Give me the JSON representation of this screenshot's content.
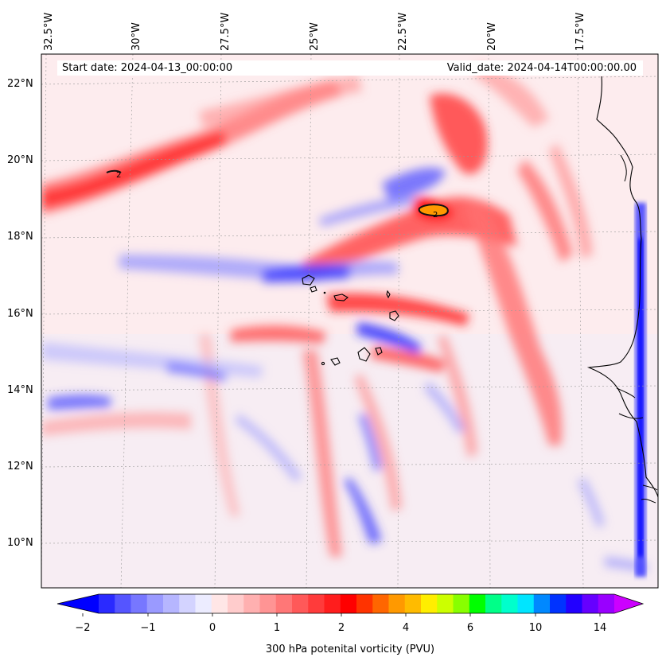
{
  "map": {
    "start_date": "Start date: 2024-04-13_00:00:00",
    "valid_date": "Valid_date: 2024-04-14T00:00:00.00",
    "longitude_labels": [
      "32.5°W",
      "30°W",
      "27.5°W",
      "25°W",
      "22.5°W",
      "20°W",
      "17.5°W"
    ],
    "latitude_labels": [
      "22°N",
      "20°N",
      "18°N",
      "16°N",
      "14°N",
      "12°N",
      "10°N"
    ],
    "field": "300 hPa potential vorticity",
    "contour_labels": [
      "2",
      "2"
    ]
  },
  "colorbar": {
    "title": "300 hPa potenital vorticity (PVU)",
    "ticks": [
      "−2",
      "−1",
      "0",
      "1",
      "2",
      "4",
      "6",
      "10",
      "14"
    ],
    "colors": [
      "#0000ff",
      "#2a2aff",
      "#5555ff",
      "#7777ff",
      "#9a9aff",
      "#b6b6ff",
      "#d3d3ff",
      "#ececff",
      "#ffe6e6",
      "#ffcccc",
      "#ffb0b0",
      "#ff9494",
      "#ff7777",
      "#ff5959",
      "#ff3b3b",
      "#ff1d1d",
      "#ff0000",
      "#ff3300",
      "#ff6600",
      "#ff9900",
      "#ffbb00",
      "#ffee00",
      "#ccff00",
      "#88ff00",
      "#00ff00",
      "#00ff88",
      "#00ffcc",
      "#00e5ff",
      "#0088ff",
      "#0033ff",
      "#2200ff",
      "#6600ff",
      "#9900ff",
      "#cc00ff"
    ]
  }
}
